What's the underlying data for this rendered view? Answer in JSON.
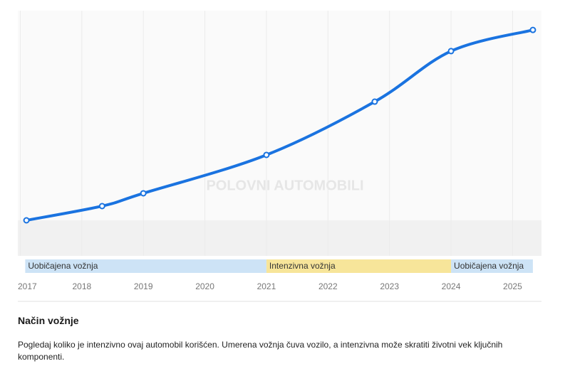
{
  "chart_data": {
    "type": "line",
    "x": [
      2017.1,
      2018.33,
      2019.0,
      2021.0,
      2022.76,
      2024.0,
      2025.33
    ],
    "values": [
      0,
      6.8,
      12.9,
      31.2,
      56.6,
      80.7,
      90.8
    ],
    "color": "#1a73e0",
    "xlim": [
      2016.96,
      2025.47
    ],
    "ylim": [
      0,
      100
    ],
    "xticks": [
      2017,
      2018,
      2019,
      2020,
      2021,
      2022,
      2023,
      2024,
      2025
    ],
    "grid": true,
    "bands": [
      {
        "start": 2017.08,
        "end": 2021.0,
        "label": "Uobičajena vožnja",
        "color": "#cde3f6"
      },
      {
        "start": 2021.0,
        "end": 2024.0,
        "label": "Intenzivna vožnja",
        "color": "#f7e59a"
      },
      {
        "start": 2024.0,
        "end": 2025.33,
        "label": "Uobičajena vožnja",
        "color": "#cde3f6"
      }
    ],
    "watermark": "POLOVNI AUTOMOBILI"
  },
  "section": {
    "title": "Način vožnje",
    "text": "Pogledaj koliko je intenzivno ovaj automobil korišćen. Umerena vožnja čuva vozilo, a intenzivna može skratiti životni vek ključnih komponenti."
  }
}
